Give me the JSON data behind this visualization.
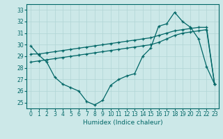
{
  "xlabel": "Humidex (Indice chaleur)",
  "xlim": [
    -0.5,
    23.5
  ],
  "ylim": [
    24.5,
    33.5
  ],
  "yticks": [
    25,
    26,
    27,
    28,
    29,
    30,
    31,
    32,
    33
  ],
  "xticks": [
    0,
    1,
    2,
    3,
    4,
    5,
    6,
    7,
    8,
    9,
    10,
    11,
    12,
    13,
    14,
    15,
    16,
    17,
    18,
    19,
    20,
    21,
    22,
    23
  ],
  "bg_color": "#cce8e8",
  "line_color": "#006666",
  "grid_color": "#b0d4d4",
  "series": [
    {
      "x": [
        0,
        1,
        2,
        3,
        4,
        5,
        6,
        7,
        8,
        9,
        10,
        11,
        12,
        13,
        14,
        15,
        16,
        17,
        18,
        19,
        20,
        21,
        22,
        23
      ],
      "y": [
        29.9,
        29.1,
        28.5,
        27.2,
        26.6,
        26.3,
        26.0,
        25.1,
        24.8,
        25.2,
        26.5,
        27.0,
        27.3,
        27.5,
        29.0,
        29.7,
        31.6,
        31.8,
        32.8,
        32.0,
        31.5,
        30.5,
        28.1,
        26.6
      ]
    },
    {
      "x": [
        0,
        1,
        2,
        3,
        4,
        5,
        6,
        7,
        8,
        9,
        10,
        11,
        12,
        13,
        14,
        15,
        16,
        17,
        18,
        19,
        20,
        21,
        22,
        23
      ],
      "y": [
        29.2,
        29.2,
        29.3,
        29.4,
        29.5,
        29.6,
        29.7,
        29.8,
        29.9,
        30.0,
        30.1,
        30.2,
        30.3,
        30.4,
        30.5,
        30.6,
        30.8,
        31.0,
        31.2,
        31.3,
        31.4,
        31.5,
        31.5,
        26.6
      ]
    },
    {
      "x": [
        0,
        1,
        2,
        3,
        4,
        5,
        6,
        7,
        8,
        9,
        10,
        11,
        12,
        13,
        14,
        15,
        16,
        17,
        18,
        19,
        20,
        21,
        22,
        23
      ],
      "y": [
        28.5,
        28.6,
        28.7,
        28.8,
        28.9,
        29.0,
        29.1,
        29.2,
        29.3,
        29.4,
        29.5,
        29.6,
        29.7,
        29.8,
        29.9,
        30.0,
        30.2,
        30.5,
        30.8,
        31.0,
        31.1,
        31.2,
        31.3,
        26.6
      ]
    }
  ]
}
